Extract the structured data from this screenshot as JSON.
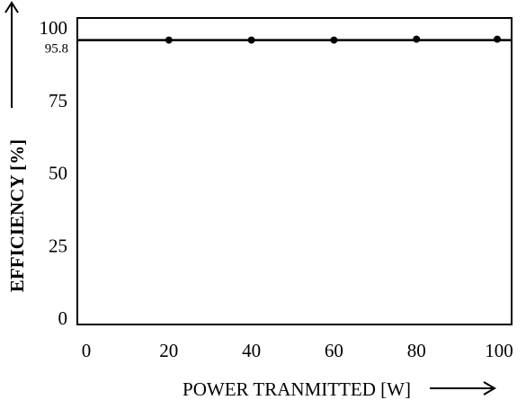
{
  "chart_data": {
    "type": "line",
    "title": "",
    "xlabel": "POWER TRANMITTED [W]",
    "ylabel": "EFFICIENCY [%]",
    "xlim": [
      0,
      100
    ],
    "ylim": [
      0,
      100
    ],
    "x_ticks": [
      "0",
      "20",
      "40",
      "60",
      "80",
      "100"
    ],
    "y_ticks": [
      "0",
      "25",
      "50",
      "75",
      "100"
    ],
    "y_annotation": "95.8",
    "grid": false,
    "series": [
      {
        "x": [
          20,
          40,
          60,
          80,
          100
        ],
        "y": [
          95.8,
          95.8,
          95.8,
          95.8,
          95.8
        ]
      }
    ],
    "reference_line": {
      "y": 95.8,
      "x_range": [
        0,
        100
      ]
    },
    "colors": {
      "line": "#000000",
      "marker": "#000000"
    }
  }
}
